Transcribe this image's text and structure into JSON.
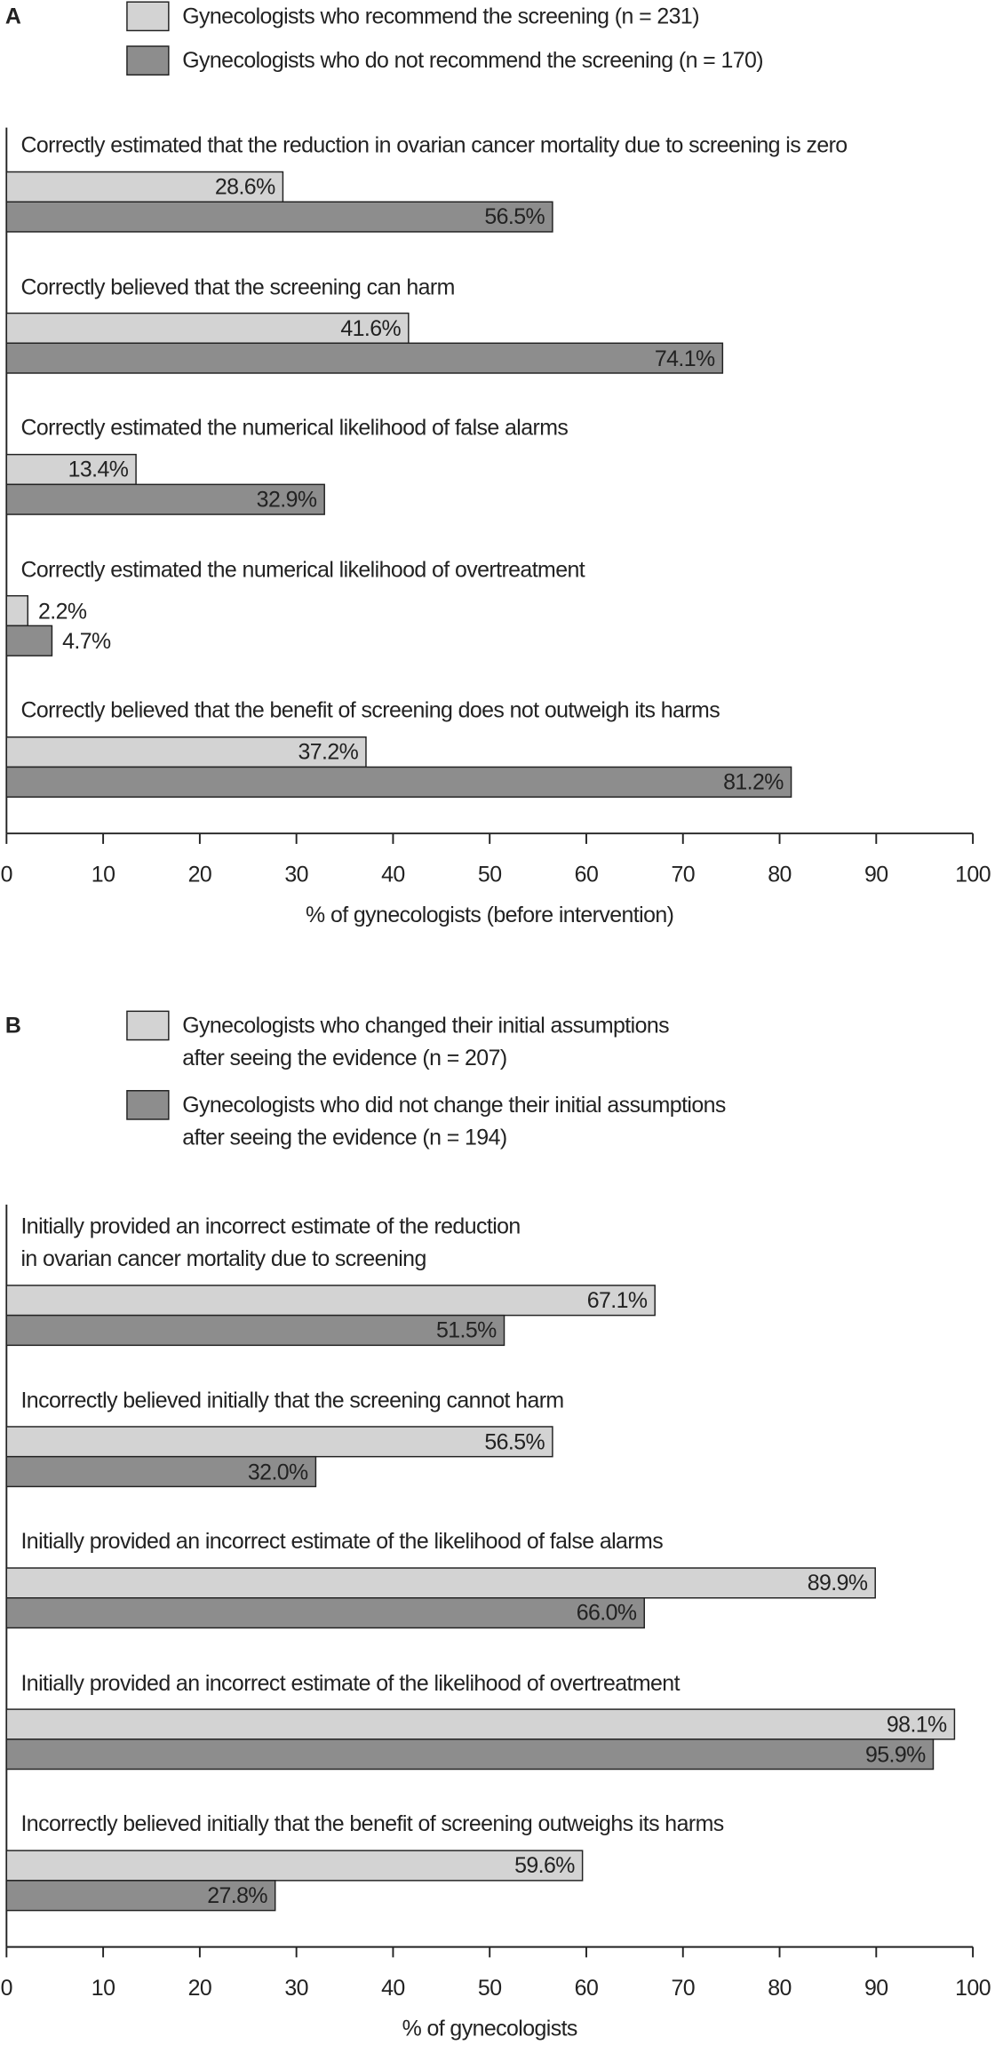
{
  "chart_data": [
    {
      "type": "bar",
      "orientation": "horizontal",
      "panel_label": "A",
      "categories": [
        "Correctly estimated that the reduction in ovarian cancer mortality due to screening is zero",
        "Correctly believed that the screening can harm",
        "Correctly estimated the numerical likelihood of false alarms",
        "Correctly estimated the numerical likelihood of overtreatment",
        "Correctly believed that the benefit of screening does not outweigh its harms"
      ],
      "series": [
        {
          "name": "Gynecologists who recommend the screening (n = 231)",
          "color": "#d3d3d3",
          "values": [
            28.6,
            41.6,
            13.4,
            2.2,
            37.2
          ],
          "value_labels": [
            "28.6%",
            "41.6%",
            "13.4%",
            "2.2%",
            "37.2%"
          ]
        },
        {
          "name": "Gynecologists who do not recommend the screening (n = 170)",
          "color": "#8d8d8d",
          "values": [
            56.5,
            74.1,
            32.9,
            4.7,
            81.2
          ],
          "value_labels": [
            "56.5%",
            "74.1%",
            "32.9%",
            "4.7%",
            "81.2%"
          ]
        }
      ],
      "xlabel": "% of gynecologists (before intervention)",
      "xlim": [
        0,
        100
      ],
      "xticks": [
        0,
        10,
        20,
        30,
        40,
        50,
        60,
        70,
        80,
        90,
        100
      ]
    },
    {
      "type": "bar",
      "orientation": "horizontal",
      "panel_label": "B",
      "categories": [
        "Initially provided an incorrect estimate of the reduction\nin ovarian cancer mortality due to screening",
        "Incorrectly believed initially that the screening cannot harm",
        "Initially provided an incorrect estimate of the likelihood of false alarms",
        "Initially provided an incorrect estimate of the likelihood of overtreatment",
        "Incorrectly believed initially that the benefit of screening outweighs its harms"
      ],
      "series": [
        {
          "name": "Gynecologists who changed their initial assumptions\nafter seeing the evidence (n = 207)",
          "color": "#d3d3d3",
          "values": [
            67.1,
            56.5,
            89.9,
            98.1,
            59.6
          ],
          "value_labels": [
            "67.1%",
            "56.5%",
            "89.9%",
            "98.1%",
            "59.6%"
          ]
        },
        {
          "name": "Gynecologists who did not change their initial assumptions\nafter seeing the evidence (n = 194)",
          "color": "#8d8d8d",
          "values": [
            51.5,
            32.0,
            66.0,
            95.9,
            27.8
          ],
          "value_labels": [
            "51.5%",
            "32.0%",
            "66.0%",
            "95.9%",
            "27.8%"
          ]
        }
      ],
      "xlabel": "% of gynecologists",
      "xlim": [
        0,
        100
      ],
      "xticks": [
        0,
        10,
        20,
        30,
        40,
        50,
        60,
        70,
        80,
        90,
        100
      ]
    }
  ]
}
